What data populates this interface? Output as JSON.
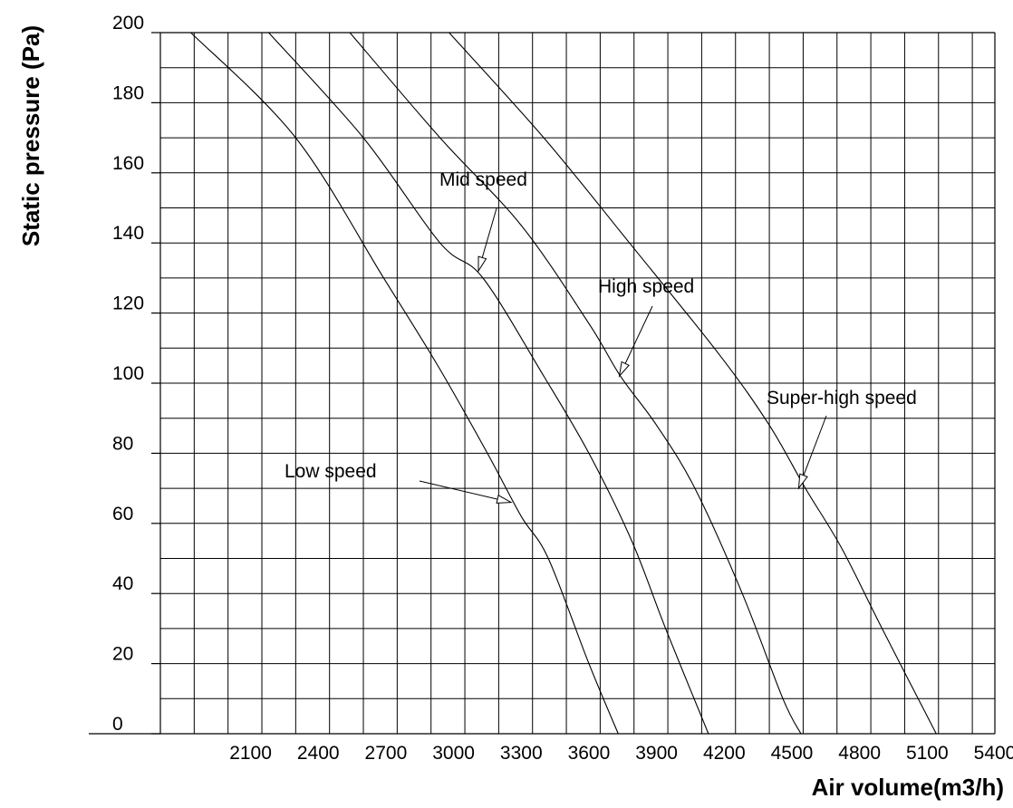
{
  "chart_data": {
    "type": "line",
    "title": "",
    "xlabel": "Air volume(m3/h)",
    "ylabel": "Static pressure (Pa)",
    "xlim": [
      1700,
      5400
    ],
    "ylim": [
      0,
      200
    ],
    "x_ticks": [
      2100,
      2400,
      2700,
      3000,
      3300,
      3600,
      3900,
      4200,
      4500,
      4800,
      5100,
      5400
    ],
    "y_ticks": [
      0,
      20,
      40,
      60,
      80,
      100,
      120,
      140,
      160,
      180,
      200
    ],
    "grid": true,
    "legend": "none",
    "series": [
      {
        "name": "Low speed",
        "points": [
          [
            1835,
            200
          ],
          [
            2300,
            170
          ],
          [
            2690,
            130
          ],
          [
            2930,
            105
          ],
          [
            3150,
            80
          ],
          [
            3300,
            62
          ],
          [
            3420,
            50
          ],
          [
            3600,
            20
          ],
          [
            3730,
            0
          ]
        ]
      },
      {
        "name": "Mid speed",
        "points": [
          [
            2180,
            200
          ],
          [
            2600,
            170
          ],
          [
            2940,
            140
          ],
          [
            3130,
            130
          ],
          [
            3400,
            102
          ],
          [
            3600,
            80
          ],
          [
            3790,
            55
          ],
          [
            3940,
            30
          ],
          [
            4130,
            0
          ]
        ]
      },
      {
        "name": "High speed",
        "points": [
          [
            2540,
            200
          ],
          [
            2940,
            170
          ],
          [
            3300,
            145
          ],
          [
            3600,
            117
          ],
          [
            3740,
            102
          ],
          [
            3900,
            88
          ],
          [
            4070,
            70
          ],
          [
            4280,
            40
          ],
          [
            4460,
            10
          ],
          [
            4540,
            0
          ]
        ]
      },
      {
        "name": "Super-high speed",
        "points": [
          [
            2980,
            200
          ],
          [
            3400,
            170
          ],
          [
            3780,
            140
          ],
          [
            4180,
            108
          ],
          [
            4400,
            88
          ],
          [
            4560,
            70
          ],
          [
            4720,
            53
          ],
          [
            4900,
            30
          ],
          [
            5140,
            0
          ]
        ]
      }
    ],
    "annotations": [
      {
        "text": "Low speed",
        "series": "Low speed",
        "at": [
          3255,
          66
        ]
      },
      {
        "text": "Mid speed",
        "series": "Mid speed",
        "at": [
          3110,
          132
        ]
      },
      {
        "text": "High speed",
        "series": "High speed",
        "at": [
          3735,
          102
        ]
      },
      {
        "text": "Super-high speed",
        "series": "Super-high speed",
        "at": [
          4530,
          70
        ]
      }
    ]
  }
}
